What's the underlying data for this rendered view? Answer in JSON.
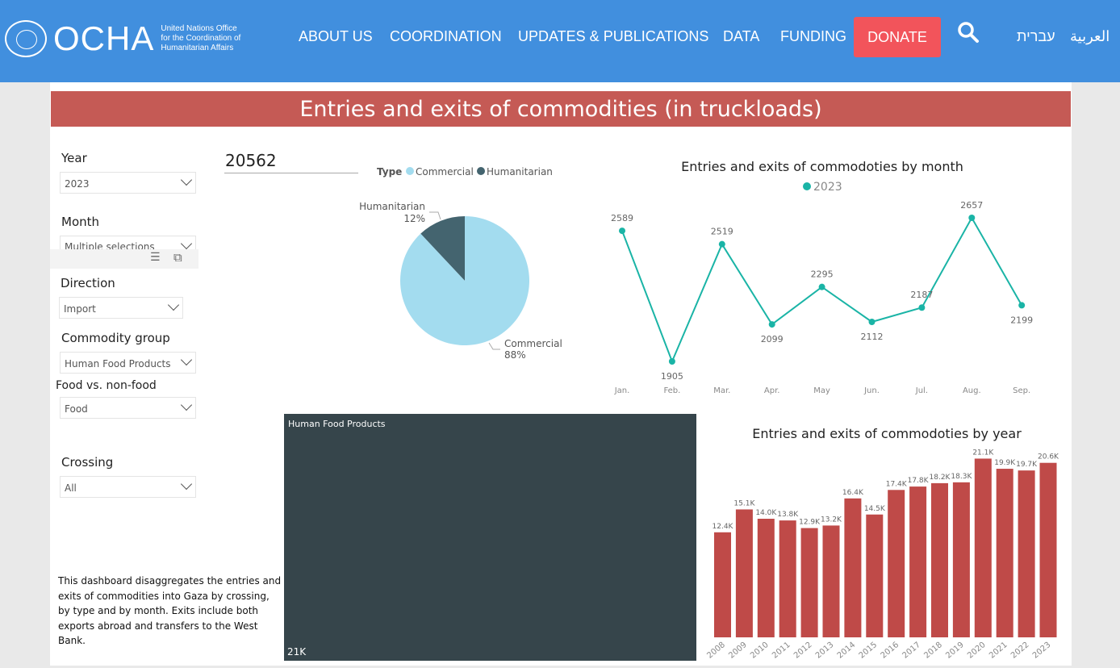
{
  "header": {
    "logo": "OCHA",
    "logo_sub": [
      "United Nations Office",
      "for the Coordination of",
      "Humanitarian Affairs"
    ],
    "nav": [
      "ABOUT US",
      "COORDINATION",
      "UPDATES & PUBLICATIONS",
      "DATA",
      "FUNDING"
    ],
    "donate": "DONATE",
    "lang_he": "עברית",
    "lang_ar": "العربية"
  },
  "title": "Entries and exits of commodities (in truckloads)",
  "filters": [
    {
      "label": "Year",
      "value": "2023"
    },
    {
      "label": "Month",
      "value": "Multiple selections"
    },
    {
      "label": "Direction",
      "value": "Import"
    },
    {
      "label": "Commodity group",
      "value": "Human Food Products"
    },
    {
      "label": "Food vs. non-food",
      "value": "Food"
    },
    {
      "label": "Crossing",
      "value": "All"
    }
  ],
  "total": "20562",
  "description": "This dashboard disaggregates  the entries and exits of commodities into Gaza by crossing, by type and by month. Exits include both exports abroad and transfers to the West Bank.",
  "treemap": {
    "label": "Human Food Products",
    "value": "21K"
  },
  "chart_data": [
    {
      "type": "pie",
      "legend_title": "Type",
      "slices": [
        {
          "name": "Commercial",
          "percent": 88,
          "label": "88%",
          "color": "#a3dcef"
        },
        {
          "name": "Humanitarian",
          "percent": 12,
          "label": "12%",
          "color": "#44646f"
        }
      ]
    },
    {
      "type": "line",
      "title": "Entries and exits of commodoties by month",
      "series_name": "2023",
      "color": "#1ab4a6",
      "categories": [
        "Jan.",
        "Feb.",
        "Mar.",
        "Apr.",
        "May",
        "Jun.",
        "Jul.",
        "Aug.",
        "Sep."
      ],
      "values": [
        2589,
        1905,
        2519,
        2099,
        2295,
        2112,
        2187,
        2657,
        2199
      ]
    },
    {
      "type": "bar",
      "title": "Entries and exits of commodoties by year",
      "color": "#bf4a48",
      "categories": [
        "2008",
        "2009",
        "2010",
        "2011",
        "2012",
        "2013",
        "2014",
        "2015",
        "2016",
        "2017",
        "2018",
        "2019",
        "2020",
        "2021",
        "2022",
        "2023"
      ],
      "values": [
        12.4,
        15.1,
        14.0,
        13.8,
        12.9,
        13.2,
        16.4,
        14.5,
        17.4,
        17.8,
        18.2,
        18.3,
        21.1,
        19.9,
        19.7,
        20.6
      ],
      "labels": [
        "12.4K",
        "15.1K",
        "14.0K",
        "13.8K",
        "12.9K",
        "13.2K",
        "16.4K",
        "14.5K",
        "17.4K",
        "17.8K",
        "18.2K",
        "18.3K",
        "21.1K",
        "19.9K",
        "19.7K",
        "20.6K"
      ]
    }
  ]
}
